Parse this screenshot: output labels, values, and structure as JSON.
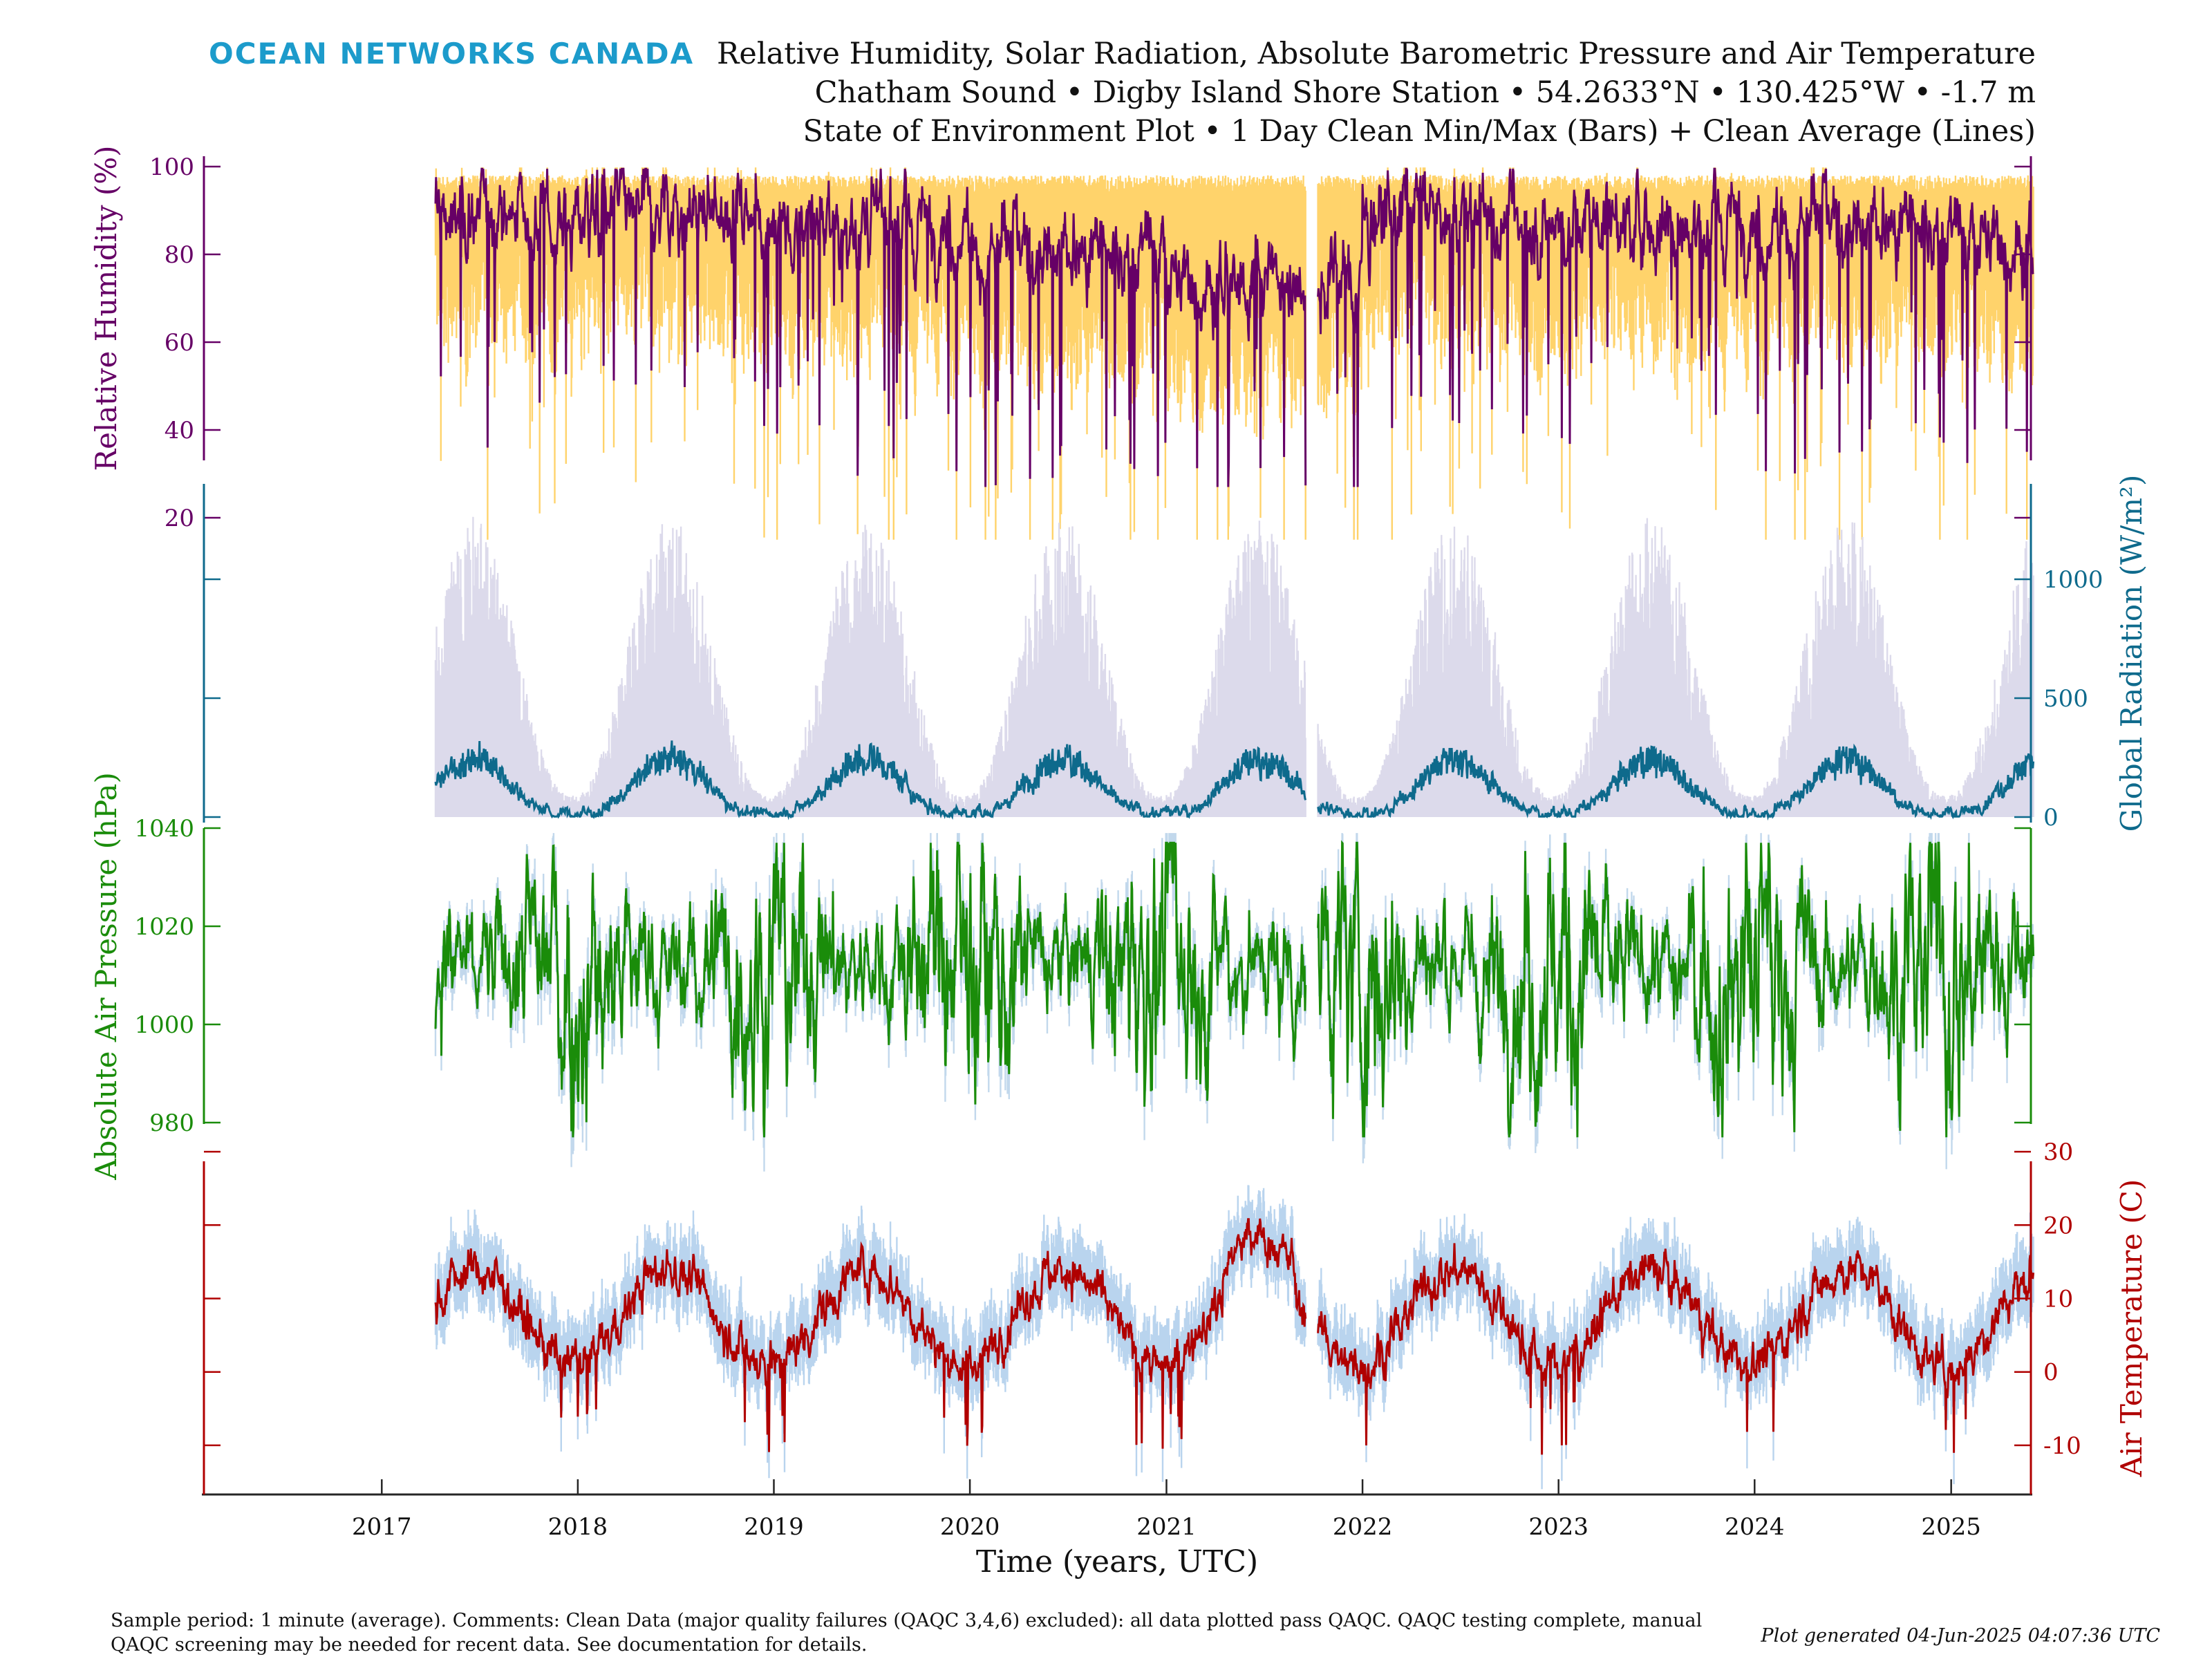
{
  "header": {
    "logo": "OCEAN NETWORKS CANADA",
    "title_lines": [
      "Relative Humidity, Solar Radiation, Absolute Barometric Pressure and Air Temperature",
      "Chatham Sound • Digby Island Shore Station • 54.2633°N • 130.425°W • -1.7 m",
      "State of Environment Plot • 1 Day Clean Min/Max (Bars) + Clean Average (Lines)"
    ]
  },
  "footer": {
    "comment_line1": "Sample period: 1 minute (average). Comments: Clean Data (major quality failures (QAQC 3,4,6) excluded): all data plotted pass QAQC. QAQC testing complete, manual",
    "comment_line2": "QAQC screening may be needed for recent data. See documentation for details.",
    "generated": "Plot generated 04-Jun-2025 04:07:36 UTC"
  },
  "colors": {
    "humidity": "#660066",
    "humidity_band": "#FFD36B",
    "radiation": "#0E6A8C",
    "radiation_band": "#DCDAEB",
    "pressure": "#1A8C0A",
    "pressure_band": "#C2D8EC",
    "temperature": "#B00000",
    "temperature_band": "#B9D4EE",
    "logo": "#1C9BCB",
    "axis": "#262626"
  },
  "chart_data": {
    "type": "line",
    "x_axis": {
      "label": "Time (years, UTC)",
      "range": [
        "2016-02",
        "2025-06"
      ],
      "ticks": [
        "2017",
        "2018",
        "2019",
        "2020",
        "2021",
        "2022",
        "2023",
        "2024",
        "2025"
      ]
    },
    "data_start": "2017-04-11",
    "data_end": "2025-06-03",
    "gap": [
      "2021-09-18",
      "2021-10-10"
    ],
    "panels": [
      {
        "name": "humidity",
        "label": "Relative Humidity (%)",
        "unit": "%",
        "side": "left",
        "ylim": [
          0,
          100
        ],
        "ticks": [
          20,
          40,
          60,
          80,
          100
        ],
        "yearly_mean": [
          {
            "year": 2017,
            "value": 88
          },
          {
            "year": 2018,
            "value": 90
          },
          {
            "year": 2019,
            "value": 86
          },
          {
            "year": 2020,
            "value": 80
          },
          {
            "year": 2021,
            "value": 74
          },
          {
            "year": 2022,
            "value": 88
          },
          {
            "year": 2023,
            "value": 87
          },
          {
            "year": 2024,
            "value": 86
          },
          {
            "year": 2025,
            "value": 83
          }
        ],
        "daily_min_range": [
          15,
          60
        ],
        "daily_max_typical": 98
      },
      {
        "name": "radiation",
        "label": "Global Radiation (W/m²)",
        "unit": "W/m²",
        "side": "right",
        "ylim": [
          0,
          1000
        ],
        "ticks": [
          0,
          500,
          1000
        ],
        "summer_avg_peak": 300,
        "winter_avg": 15,
        "summer_max_peak": 1270
      },
      {
        "name": "pressure",
        "label": "Absolute Air Pressure (hPa)",
        "unit": "hPa",
        "side": "left",
        "ylim": [
          960,
          1040
        ],
        "ticks": [
          980,
          1000,
          1020,
          1040
        ],
        "mean": 1012,
        "summer_spread": 6,
        "winter_spread": 16,
        "minimum": 977,
        "maximum": 1037
      },
      {
        "name": "temperature",
        "label": "Air Temperature (C)",
        "unit": "C",
        "side": "right",
        "ylim": [
          -15,
          35
        ],
        "ticks": [
          -10,
          0,
          10,
          20,
          30
        ],
        "annual_mean": 7.5,
        "seasonal_amplitude": 6.5,
        "peak_2021": 21,
        "minimum": -12
      }
    ]
  }
}
